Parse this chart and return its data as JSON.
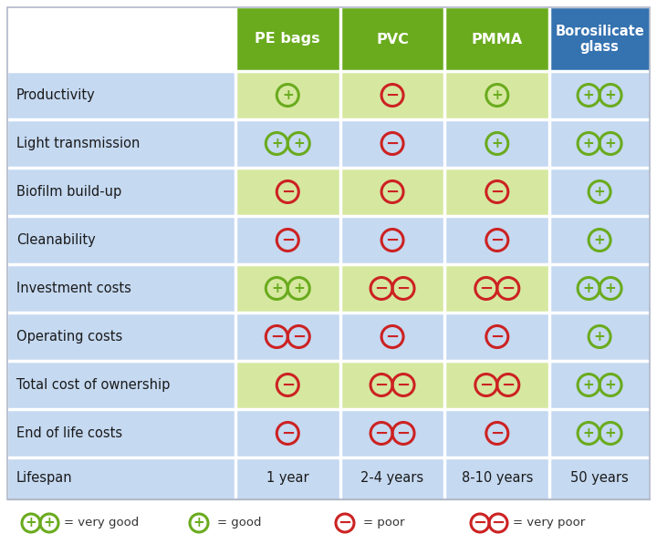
{
  "columns": [
    "PE bags",
    "PVC",
    "PMMA",
    "Borosilicate\nglass"
  ],
  "rows": [
    "Productivity",
    "Light transmission",
    "Biofilm build-up",
    "Cleanability",
    "Investment costs",
    "Operating costs",
    "Total cost of ownership",
    "End of life costs",
    "Lifespan"
  ],
  "cell_data": [
    [
      "good_green",
      "poor_red",
      "good_green",
      "very_good_green"
    ],
    [
      "very_good_green",
      "poor_red",
      "good_green",
      "very_good_green"
    ],
    [
      "poor_red",
      "poor_red",
      "poor_red",
      "good_green"
    ],
    [
      "poor_red",
      "poor_red",
      "poor_red",
      "good_green"
    ],
    [
      "very_good_green",
      "very_poor_red",
      "very_poor_red",
      "very_good_green"
    ],
    [
      "very_poor_red",
      "poor_red",
      "poor_red",
      "good_green"
    ],
    [
      "poor_red",
      "very_poor_red",
      "very_poor_red",
      "very_good_green"
    ],
    [
      "poor_red",
      "very_poor_red",
      "poor_red",
      "very_good_green"
    ],
    [
      "1 year",
      "2-4 years",
      "8-10 years",
      "50 years"
    ]
  ],
  "row_cell_bg": [
    [
      "#d6e8a0",
      "#d6e8a0",
      "#d6e8a0",
      "#c5d9f1"
    ],
    [
      "#c5d9f1",
      "#c5d9f1",
      "#c5d9f1",
      "#c5d9f1"
    ],
    [
      "#d6e8a0",
      "#d6e8a0",
      "#d6e8a0",
      "#c5d9f1"
    ],
    [
      "#c5d9f1",
      "#c5d9f1",
      "#c5d9f1",
      "#c5d9f1"
    ],
    [
      "#d6e8a0",
      "#d6e8a0",
      "#d6e8a0",
      "#c5d9f1"
    ],
    [
      "#c5d9f1",
      "#c5d9f1",
      "#c5d9f1",
      "#c5d9f1"
    ],
    [
      "#d6e8a0",
      "#d6e8a0",
      "#d6e8a0",
      "#c5d9f1"
    ],
    [
      "#c5d9f1",
      "#c5d9f1",
      "#c5d9f1",
      "#c5d9f1"
    ],
    [
      "#c5d9f1",
      "#c5d9f1",
      "#c5d9f1",
      "#c5d9f1"
    ]
  ],
  "green_header": "#6aab1e",
  "blue_header": "#3472b0",
  "label_bg": "#c5d9f1",
  "header_label_bg": "#ffffff",
  "green_circ": "#6aab1e",
  "red_circ": "#cc2222",
  "white_sep": "#ffffff",
  "fig_width": 7.2,
  "fig_height": 6.08,
  "dpi": 100
}
